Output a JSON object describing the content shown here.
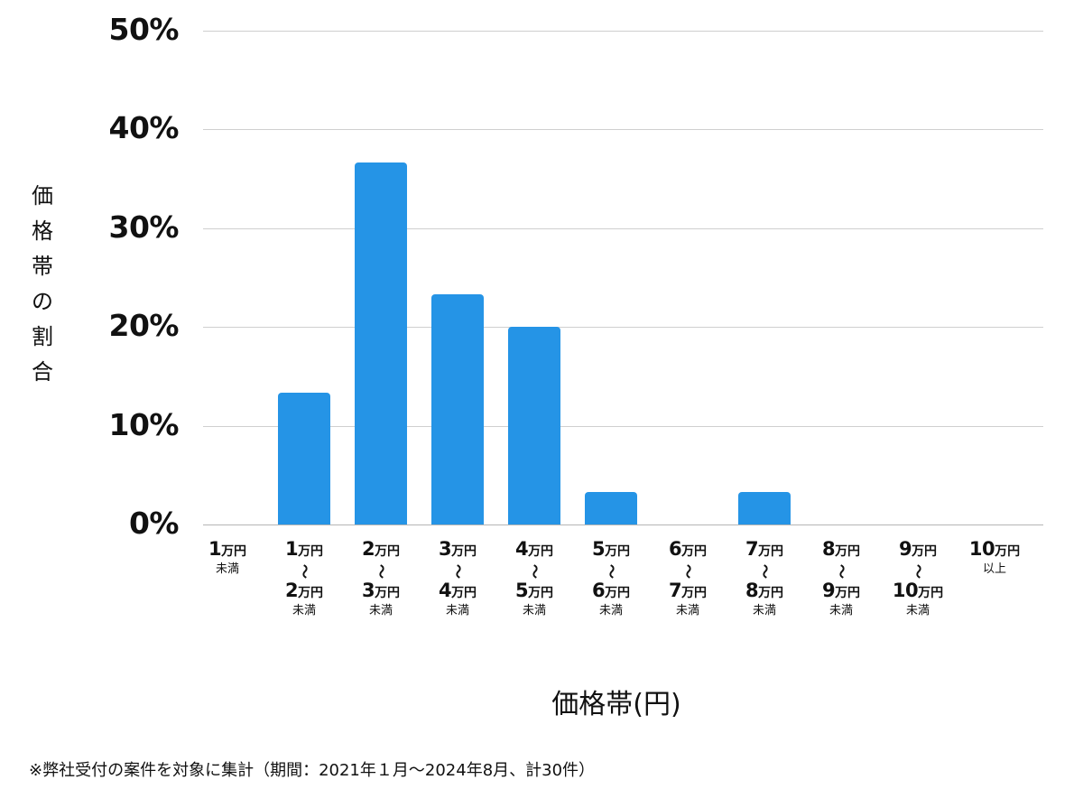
{
  "chart_data": {
    "type": "bar",
    "title": "",
    "xlabel": "価格帯(円)",
    "ylabel": "価格帯の割合",
    "ylim": [
      0,
      50
    ],
    "yticks": [
      "0%",
      "10%",
      "20%",
      "30%",
      "40%",
      "50%"
    ],
    "grid": true,
    "legend": null,
    "categories": [
      "1万円未満",
      "1万円〜2万円未満",
      "2万円〜3万円未満",
      "3万円〜4万円未満",
      "4万円〜5万円未満",
      "5万円〜6万円未満",
      "6万円〜7万円未満",
      "7万円〜8万円未満",
      "8万円〜9万円未満",
      "9万円〜10万円未満",
      "10万円以上"
    ],
    "values": [
      0,
      13.3,
      36.7,
      23.3,
      20.0,
      3.3,
      0,
      3.3,
      0,
      0,
      0
    ],
    "color": "#2594e6",
    "footnote": "※弊社受付の案件を対象に集計（期間：2021年１月〜2024年8月、計30件）"
  },
  "axis": {
    "yticks": [
      "50%",
      "40%",
      "30%",
      "20%",
      "10%",
      "0%"
    ],
    "ylabel_chars": [
      "価",
      "格",
      "帯",
      "の",
      "割",
      "合"
    ],
    "xlabel": "価格帯(円)"
  },
  "categories": [
    {
      "from": "1",
      "unit": "万円",
      "to": null,
      "suffix": "未満"
    },
    {
      "from": "1",
      "unit": "万円",
      "to": "2",
      "suffix": "未満"
    },
    {
      "from": "2",
      "unit": "万円",
      "to": "3",
      "suffix": "未満"
    },
    {
      "from": "3",
      "unit": "万円",
      "to": "4",
      "suffix": "未満"
    },
    {
      "from": "4",
      "unit": "万円",
      "to": "5",
      "suffix": "未満"
    },
    {
      "from": "5",
      "unit": "万円",
      "to": "6",
      "suffix": "未満"
    },
    {
      "from": "6",
      "unit": "万円",
      "to": "7",
      "suffix": "未満"
    },
    {
      "from": "7",
      "unit": "万円",
      "to": "8",
      "suffix": "未満"
    },
    {
      "from": "8",
      "unit": "万円",
      "to": "9",
      "suffix": "未満"
    },
    {
      "from": "9",
      "unit": "万円",
      "to": "10",
      "suffix": "未満"
    },
    {
      "from": "10",
      "unit": "万円",
      "to": null,
      "suffix": "以上"
    }
  ],
  "tilde": "〜",
  "footnote": "※弊社受付の案件を対象に集計（期間：2021年１月〜2024年8月、計30件）"
}
